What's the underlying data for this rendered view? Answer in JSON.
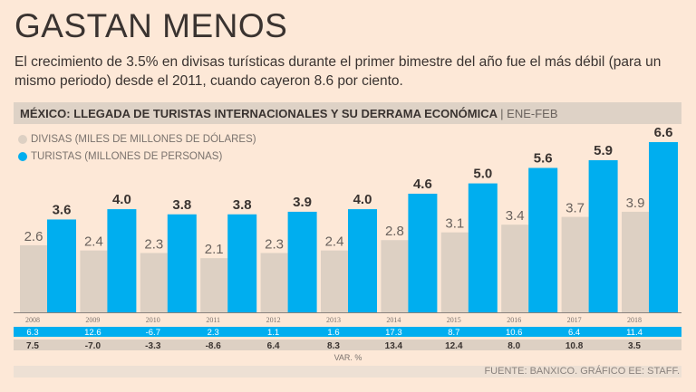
{
  "title": "GASTAN MENOS",
  "subtitle": "El crecimiento de 3.5% en divisas turísticas durante el primer bimestre del año fue el más débil (para un mismo periodo) desde el 2011, cuando cayeron 8.6 por ciento.",
  "chart_data": {
    "type": "bar",
    "title": "MÉXICO: LLEGADA DE TURISTAS INTERNACIONALES Y SU DERRAMA ECONÓMICA",
    "period": "| ENE-FEB",
    "categories": [
      "2008",
      "2009",
      "2010",
      "2011",
      "2012",
      "2013",
      "2014",
      "2015",
      "2016",
      "2017",
      "2018"
    ],
    "series": [
      {
        "name": "DIVISAS (MILES DE MILLONES DE DÓLARES)",
        "color": "#ddd0c3",
        "values": [
          2.6,
          2.4,
          2.3,
          2.1,
          2.3,
          2.4,
          2.8,
          3.1,
          3.4,
          3.7,
          3.9
        ],
        "var": [
          "7.5",
          "-7.0",
          "-3.3",
          "-8.6",
          "6.4",
          "8.3",
          "13.4",
          "12.4",
          "8.0",
          "10.8",
          "3.5"
        ]
      },
      {
        "name": "TURISTAS (MILLONES DE PERSONAS)",
        "color": "#00aeef",
        "values": [
          3.6,
          4.0,
          3.8,
          3.8,
          3.9,
          4.0,
          4.6,
          5.0,
          5.6,
          5.9,
          6.6
        ],
        "var": [
          "6.3",
          "12.6",
          "-6.7",
          "2.3",
          "1.1",
          "1.6",
          "17.3",
          "8.7",
          "10.6",
          "6.4",
          "11.4"
        ]
      }
    ],
    "var_label": "VAR. %",
    "ylim": [
      0,
      6.6
    ]
  },
  "source": "FUENTE: BANXICO.   GRÁFICO EE: STAFF."
}
